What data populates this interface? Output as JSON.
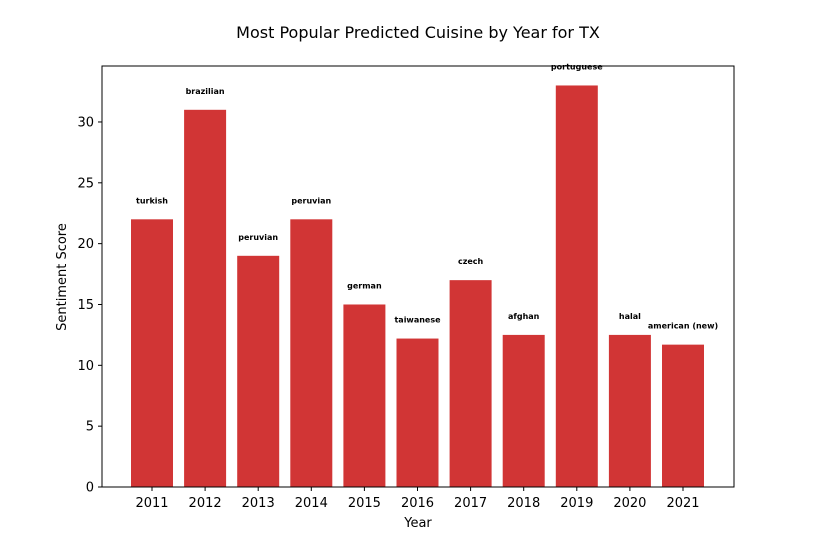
{
  "chart_data": {
    "type": "bar",
    "title": "Most Popular Predicted Cuisine by Year for TX",
    "xlabel": "Year",
    "ylabel": "Sentiment Score",
    "categories": [
      "2011",
      "2012",
      "2013",
      "2014",
      "2015",
      "2016",
      "2017",
      "2018",
      "2019",
      "2020",
      "2021"
    ],
    "values": [
      22,
      31,
      19,
      22,
      15,
      12.2,
      17,
      12.5,
      33,
      12.5,
      11.7
    ],
    "data_labels": [
      "turkish",
      "brazilian",
      "peruvian",
      "peruvian",
      "german",
      "taiwanese",
      "czech",
      "afghan",
      "portuguese",
      "halal",
      "american (new)"
    ],
    "ylim": [
      0,
      34.6
    ],
    "yticks": [
      0,
      5,
      10,
      15,
      20,
      25,
      30
    ],
    "bar_color": "#d13535",
    "grid": false
  }
}
